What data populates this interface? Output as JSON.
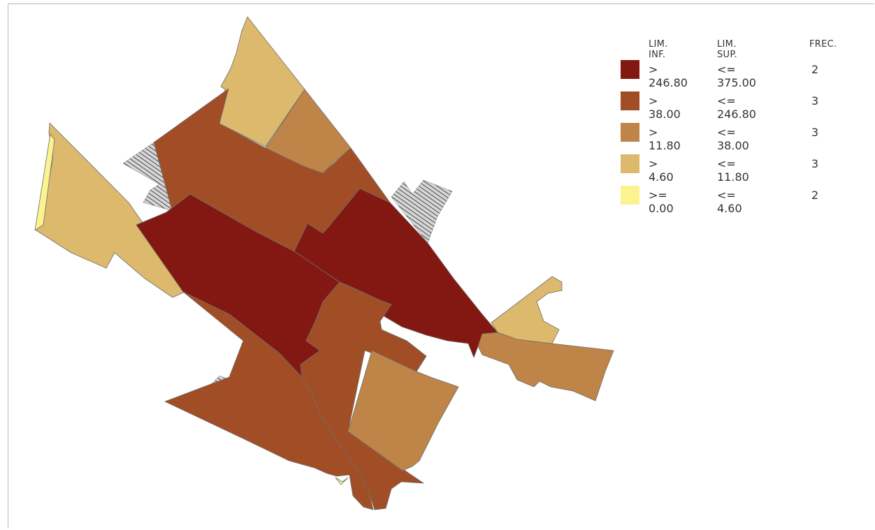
{
  "colors": {
    "class_1": "#831812",
    "class_2": "#A14E26",
    "class_3": "#BF8447",
    "class_4": "#DCB96C",
    "class_5": "#FBF38D",
    "no_data": "#B4B4B4"
  },
  "map": {
    "regions": [
      {
        "name": "north-tip-region",
        "class": "class_4"
      },
      {
        "name": "west-region",
        "class": "class_4"
      },
      {
        "name": "west-strip-region",
        "class": "class_5"
      },
      {
        "name": "north-central-region",
        "class": "class_2"
      },
      {
        "name": "north-mid-region",
        "class": "class_3"
      },
      {
        "name": "central-west-region",
        "class": "class_1"
      },
      {
        "name": "central-east-region",
        "class": "class_1"
      },
      {
        "name": "southwest-region",
        "class": "class_2"
      },
      {
        "name": "south-central-region",
        "class": "class_2"
      },
      {
        "name": "south-east-region",
        "class": "class_3"
      },
      {
        "name": "east-extension-region",
        "class": "class_3"
      },
      {
        "name": "east-top-region",
        "class": "class_4"
      },
      {
        "name": "south-small-region",
        "class": "class_5"
      }
    ]
  },
  "legend": {
    "header": {
      "inf": "LIM. INF.",
      "sup": "LIM. SUP.",
      "frec": "FREC."
    },
    "rows": [
      {
        "inf": "> 246.80",
        "sup": "<= 375.00",
        "frec": "2",
        "color": "#831812"
      },
      {
        "inf": "> 38.00",
        "sup": "<= 246.80",
        "frec": "3",
        "color": "#A14E26"
      },
      {
        "inf": "> 11.80",
        "sup": "<= 38.00",
        "frec": "3",
        "color": "#BF8447"
      },
      {
        "inf": "> 4.60",
        "sup": "<= 11.80",
        "frec": "3",
        "color": "#DCB96C"
      },
      {
        "inf": ">= 0.00",
        "sup": "<= 4.60",
        "frec": "2",
        "color": "#FBF38D"
      }
    ]
  }
}
